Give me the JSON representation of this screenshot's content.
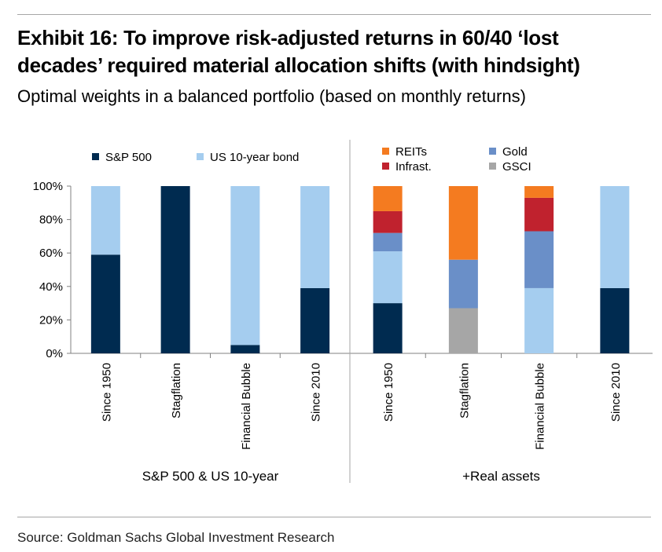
{
  "header": {
    "title": "Exhibit 16: To improve risk-adjusted returns in 60/40 ‘lost decades’ required material allocation shifts (with hindsight)",
    "subtitle": "Optimal weights in a balanced portfolio (based on monthly returns)"
  },
  "footer": {
    "source": "Source: Goldman Sachs Global Investment Research"
  },
  "colors": {
    "sp500": "#002b50",
    "bond": "#a5cdef",
    "reits": "#f47b20",
    "infrast": "#c0222e",
    "gold": "#6a8fc8",
    "gsci": "#a6a6a6",
    "axis": "#808080",
    "divider": "#a6a6a6"
  },
  "chart_data": {
    "type": "bar",
    "stacked": true,
    "ylim": [
      0,
      100
    ],
    "y_ticks": [
      "0%",
      "20%",
      "40%",
      "60%",
      "80%",
      "100%"
    ],
    "grid": false,
    "groups": [
      {
        "label": "S&P 500 & US 10-year",
        "categories": [
          "Since 1950",
          "Stagflation",
          "Financial Bubble",
          "Since 2010"
        ],
        "legend": [
          {
            "name": "S&P 500",
            "color_key": "sp500"
          },
          {
            "name": "US 10-year bond",
            "color_key": "bond"
          }
        ],
        "series": [
          {
            "name": "S&P 500",
            "color_key": "sp500",
            "values": [
              59,
              100,
              5,
              39
            ]
          },
          {
            "name": "US 10-year bond",
            "color_key": "bond",
            "values": [
              41,
              0,
              95,
              61
            ]
          }
        ]
      },
      {
        "label": "+Real assets",
        "categories": [
          "Since 1950",
          "Stagflation",
          "Financial Bubble",
          "Since 2010"
        ],
        "legend": [
          {
            "name": "REITs",
            "color_key": "reits"
          },
          {
            "name": "Infrast.",
            "color_key": "infrast"
          },
          {
            "name": "Gold",
            "color_key": "gold"
          },
          {
            "name": "GSCI",
            "color_key": "gsci"
          }
        ],
        "series": [
          {
            "name": "S&P 500",
            "color_key": "sp500",
            "values": [
              30,
              0,
              0,
              39
            ]
          },
          {
            "name": "GSCI",
            "color_key": "gsci",
            "values": [
              0,
              27,
              0,
              0
            ]
          },
          {
            "name": "US 10-year bond",
            "color_key": "bond",
            "values": [
              31,
              0,
              39,
              61
            ]
          },
          {
            "name": "Gold",
            "color_key": "gold",
            "values": [
              11,
              29,
              34,
              0
            ]
          },
          {
            "name": "Infrast.",
            "color_key": "infrast",
            "values": [
              13,
              0,
              20,
              0
            ]
          },
          {
            "name": "REITs",
            "color_key": "reits",
            "values": [
              15,
              44,
              7,
              0
            ]
          }
        ]
      }
    ]
  }
}
